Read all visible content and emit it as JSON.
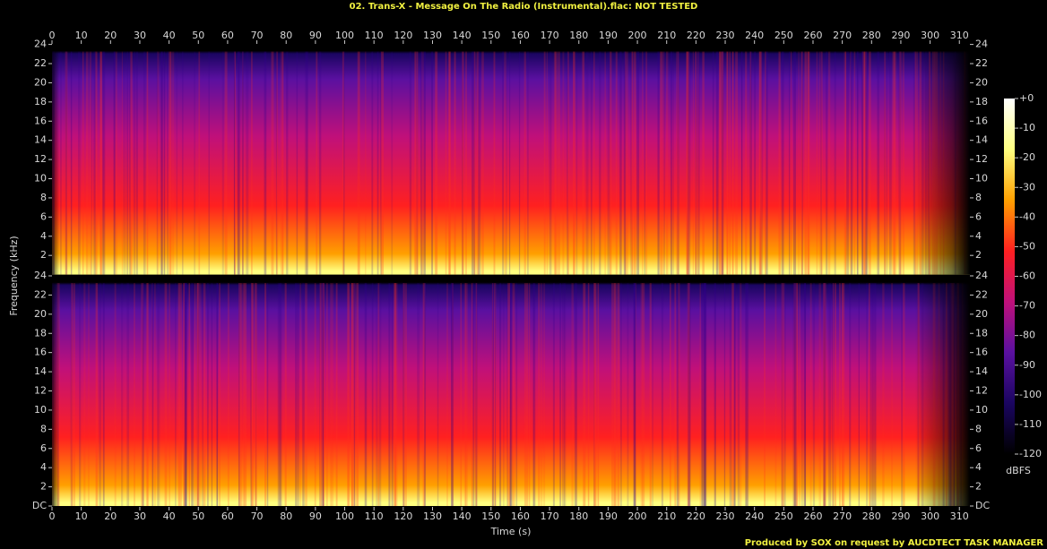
{
  "chart_data": {
    "type": "spectrogram",
    "title": "02. Trans-X - Message On The Radio (Instrumental).flac: NOT TESTED",
    "xlabel": "Time (s)",
    "ylabel": "Frequency (kHz)",
    "xlim": [
      0,
      313.6
    ],
    "xticks": [
      0,
      10,
      20,
      30,
      40,
      50,
      60,
      70,
      80,
      90,
      100,
      110,
      120,
      130,
      140,
      150,
      160,
      170,
      180,
      190,
      200,
      210,
      220,
      230,
      240,
      250,
      260,
      270,
      280,
      290,
      300,
      310
    ],
    "panels": [
      {
        "ylim": [
          0,
          24
        ],
        "yticks": [
          2,
          4,
          6,
          8,
          10,
          12,
          14,
          16,
          18,
          20,
          22,
          24
        ]
      },
      {
        "ylim": [
          0,
          24
        ],
        "yticks": [
          {
            "value": 0,
            "label": "DC"
          },
          2,
          4,
          6,
          8,
          10,
          12,
          14,
          16,
          18,
          20,
          22,
          24
        ]
      }
    ],
    "colorbar": {
      "label": "dBFS",
      "lim": [
        -120,
        0
      ],
      "ticks": [
        {
          "value": 0,
          "label": "+0"
        },
        -10,
        -20,
        -30,
        -40,
        -50,
        -60,
        -70,
        -80,
        -90,
        -100,
        -110,
        -120
      ],
      "colors": [
        "#000000",
        "#1a0560",
        "#5a10a0",
        "#c0107a",
        "#ff2020",
        "#ffa000",
        "#ffff80",
        "#ffffff"
      ]
    },
    "footer": "Produced by SOX on request by AUCDTECT TASK MANAGER"
  }
}
